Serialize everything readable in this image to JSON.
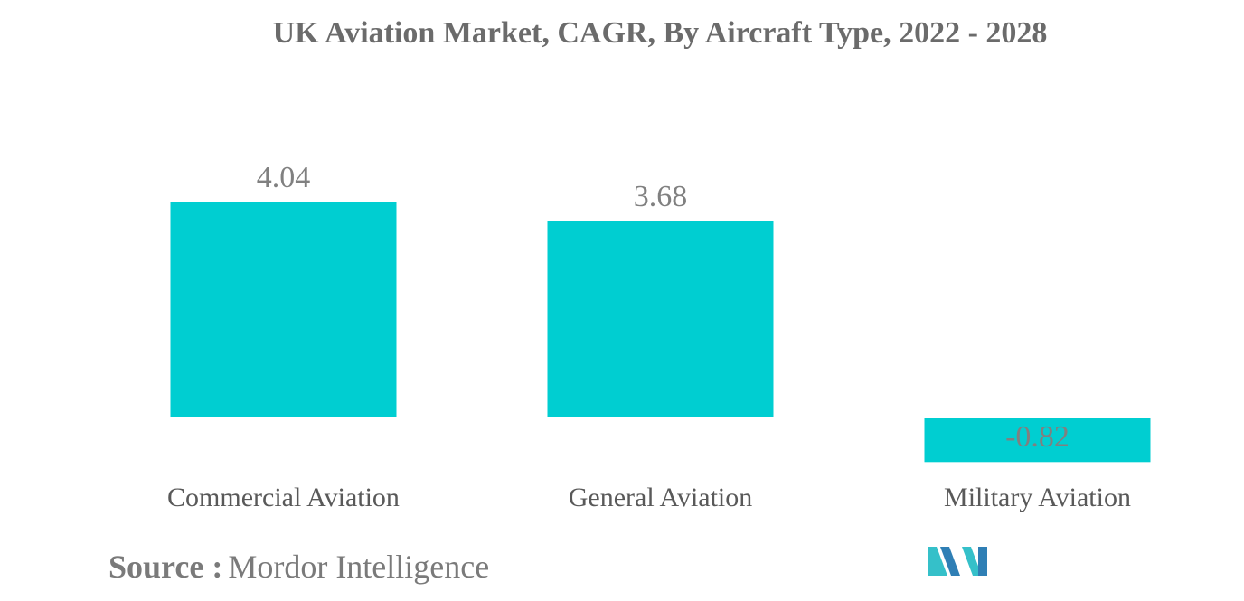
{
  "chart_data": {
    "type": "bar",
    "title": "UK Aviation Market, CAGR, By Aircraft Type, 2022 - 2028",
    "xlabel": "",
    "ylabel": "",
    "categories": [
      "Commercial Aviation",
      "General Aviation",
      "Military Aviation"
    ],
    "values": [
      4.04,
      3.68,
      -0.82
    ],
    "value_labels": [
      "4.04",
      "3.68",
      "-0.82"
    ],
    "ylim": [
      -0.82,
      4.04
    ],
    "grid": false,
    "bar_color": "#00ced1",
    "label_color": "#808080"
  },
  "source": {
    "label": "Source :",
    "text": "Mordor Intelligence"
  },
  "colors": {
    "title": "#6b6b6b",
    "category_text": "#595959",
    "logo_dark": "#2f7fb5",
    "logo_light": "#35c0c9"
  }
}
